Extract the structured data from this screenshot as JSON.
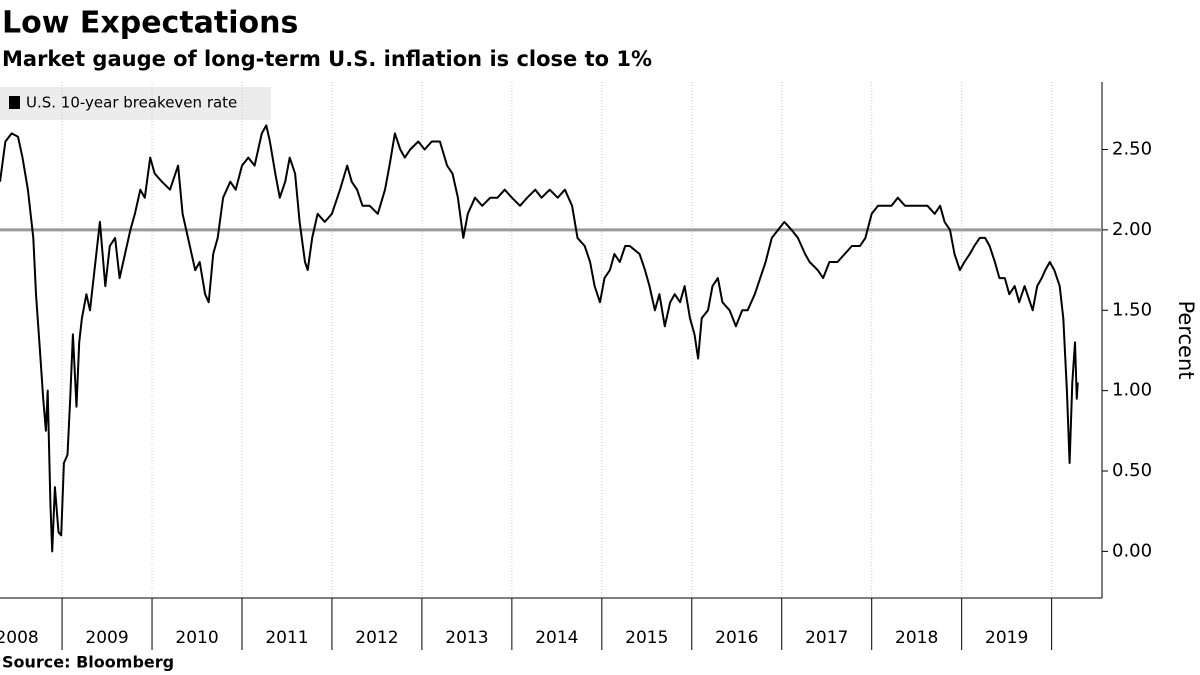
{
  "chart_data": {
    "type": "line",
    "title": "Low Expectations",
    "subtitle": "Market gauge of long-term U.S. inflation is close to 1%",
    "source": "Source: Bloomberg",
    "y_axis_label": "Percent",
    "series": [
      {
        "name": "U.S. 10-year breakeven rate",
        "color": "#000000",
        "x": [
          2008.31,
          2008.37,
          2008.44,
          2008.51,
          2008.56,
          2008.62,
          2008.68,
          2008.71,
          2008.76,
          2008.79,
          2008.82,
          2008.84,
          2008.87,
          2008.89,
          2008.92,
          2008.96,
          2008.99,
          2009.02,
          2009.06,
          2009.09,
          2009.12,
          2009.16,
          2009.19,
          2009.22,
          2009.27,
          2009.31,
          2009.37,
          2009.42,
          2009.48,
          2009.53,
          2009.59,
          2009.64,
          2009.7,
          2009.76,
          2009.81,
          2009.87,
          2009.92,
          2009.98,
          2010.03,
          2010.11,
          2010.2,
          2010.29,
          2010.34,
          2010.4,
          2010.48,
          2010.53,
          2010.59,
          2010.63,
          2010.68,
          2010.73,
          2010.79,
          2010.87,
          2010.93,
          2011.0,
          2011.07,
          2011.14,
          2011.22,
          2011.27,
          2011.31,
          2011.37,
          2011.42,
          2011.48,
          2011.53,
          2011.59,
          2011.64,
          2011.7,
          2011.73,
          2011.78,
          2011.84,
          2011.92,
          2012.0,
          2012.09,
          2012.17,
          2012.22,
          2012.28,
          2012.34,
          2012.42,
          2012.51,
          2012.59,
          2012.64,
          2012.7,
          2012.76,
          2012.81,
          2012.87,
          2012.96,
          2013.03,
          2013.11,
          2013.2,
          2013.28,
          2013.34,
          2013.4,
          2013.46,
          2013.51,
          2013.59,
          2013.67,
          2013.76,
          2013.84,
          2013.92,
          2014.0,
          2014.09,
          2014.17,
          2014.26,
          2014.33,
          2014.42,
          2014.51,
          2014.59,
          2014.67,
          2014.73,
          2014.81,
          2014.87,
          2014.92,
          2014.98,
          2015.03,
          2015.09,
          2015.14,
          2015.2,
          2015.26,
          2015.31,
          2015.42,
          2015.48,
          2015.53,
          2015.59,
          2015.64,
          2015.7,
          2015.76,
          2015.81,
          2015.87,
          2015.92,
          2015.98,
          2016.03,
          2016.07,
          2016.11,
          2016.18,
          2016.23,
          2016.29,
          2016.34,
          2016.42,
          2016.49,
          2016.56,
          2016.62,
          2016.7,
          2016.76,
          2016.82,
          2016.89,
          2016.96,
          2017.03,
          2017.11,
          2017.18,
          2017.26,
          2017.31,
          2017.4,
          2017.46,
          2017.53,
          2017.62,
          2017.7,
          2017.78,
          2017.87,
          2017.93,
          2018.0,
          2018.07,
          2018.14,
          2018.22,
          2018.29,
          2018.37,
          2018.44,
          2018.53,
          2018.62,
          2018.7,
          2018.76,
          2018.81,
          2018.87,
          2018.92,
          2018.98,
          2019.03,
          2019.09,
          2019.14,
          2019.2,
          2019.26,
          2019.31,
          2019.37,
          2019.42,
          2019.48,
          2019.53,
          2019.59,
          2019.64,
          2019.7,
          2019.76,
          2019.79,
          2019.84,
          2019.89,
          2019.93,
          2019.98,
          2020.03,
          2020.09,
          2020.13,
          2020.17,
          2020.2,
          2020.23,
          2020.26,
          2020.28,
          2020.29
        ],
        "values": [
          2.3,
          2.55,
          2.6,
          2.58,
          2.45,
          2.25,
          1.95,
          1.6,
          1.2,
          0.95,
          0.75,
          1.0,
          0.3,
          0.0,
          0.4,
          0.12,
          0.1,
          0.55,
          0.6,
          0.95,
          1.35,
          0.9,
          1.3,
          1.45,
          1.6,
          1.5,
          1.8,
          2.05,
          1.65,
          1.9,
          1.95,
          1.7,
          1.85,
          2.0,
          2.1,
          2.25,
          2.2,
          2.45,
          2.35,
          2.3,
          2.25,
          2.4,
          2.1,
          1.95,
          1.75,
          1.8,
          1.6,
          1.55,
          1.85,
          1.95,
          2.2,
          2.3,
          2.25,
          2.4,
          2.45,
          2.4,
          2.6,
          2.65,
          2.55,
          2.35,
          2.2,
          2.3,
          2.45,
          2.35,
          2.05,
          1.8,
          1.75,
          1.95,
          2.1,
          2.05,
          2.1,
          2.25,
          2.4,
          2.3,
          2.25,
          2.15,
          2.15,
          2.1,
          2.25,
          2.4,
          2.6,
          2.5,
          2.45,
          2.5,
          2.55,
          2.5,
          2.55,
          2.55,
          2.4,
          2.35,
          2.2,
          1.95,
          2.1,
          2.2,
          2.15,
          2.2,
          2.2,
          2.25,
          2.2,
          2.15,
          2.2,
          2.25,
          2.2,
          2.25,
          2.2,
          2.25,
          2.15,
          1.95,
          1.9,
          1.8,
          1.65,
          1.55,
          1.7,
          1.75,
          1.85,
          1.8,
          1.9,
          1.9,
          1.85,
          1.75,
          1.65,
          1.5,
          1.6,
          1.4,
          1.55,
          1.6,
          1.55,
          1.65,
          1.45,
          1.35,
          1.2,
          1.45,
          1.5,
          1.65,
          1.7,
          1.55,
          1.5,
          1.4,
          1.5,
          1.5,
          1.6,
          1.7,
          1.8,
          1.95,
          2.0,
          2.05,
          2.0,
          1.95,
          1.85,
          1.8,
          1.75,
          1.7,
          1.8,
          1.8,
          1.85,
          1.9,
          1.9,
          1.95,
          2.1,
          2.15,
          2.15,
          2.15,
          2.2,
          2.15,
          2.15,
          2.15,
          2.15,
          2.1,
          2.15,
          2.05,
          2.0,
          1.85,
          1.75,
          1.8,
          1.85,
          1.9,
          1.95,
          1.95,
          1.9,
          1.8,
          1.7,
          1.7,
          1.6,
          1.65,
          1.55,
          1.65,
          1.55,
          1.5,
          1.65,
          1.7,
          1.75,
          1.8,
          1.75,
          1.65,
          1.45,
          1.0,
          0.55,
          1.05,
          1.3,
          0.95,
          1.05
        ]
      }
    ],
    "reference_line": 2,
    "reference_color": "#999999",
    "xlim": [
      2008.31,
      2020.56
    ],
    "xgrid": [
      2009,
      2010,
      2011,
      2012,
      2013,
      2014,
      2015,
      2016,
      2017,
      2018,
      2019,
      2020
    ],
    "xticks": [
      {
        "value": 2008.5,
        "label": "2008"
      },
      {
        "value": 2009.5,
        "label": "2009"
      },
      {
        "value": 2010.5,
        "label": "2010"
      },
      {
        "value": 2011.5,
        "label": "2011"
      },
      {
        "value": 2012.5,
        "label": "2012"
      },
      {
        "value": 2013.5,
        "label": "2013"
      },
      {
        "value": 2014.5,
        "label": "2014"
      },
      {
        "value": 2015.5,
        "label": "2015"
      },
      {
        "value": 2016.5,
        "label": "2016"
      },
      {
        "value": 2017.5,
        "label": "2017"
      },
      {
        "value": 2018.5,
        "label": "2018"
      },
      {
        "value": 2019.5,
        "label": "2019"
      }
    ],
    "ylim": [
      -0.29,
      2.92
    ],
    "yticks": [
      {
        "value": 0,
        "label": "0.00"
      },
      {
        "value": 0.5,
        "label": "0.50"
      },
      {
        "value": 1,
        "label": "1.00"
      },
      {
        "value": 1.5,
        "label": "1.50"
      },
      {
        "value": 2,
        "label": "2.00"
      },
      {
        "value": 2.5,
        "label": "2.50"
      }
    ]
  }
}
